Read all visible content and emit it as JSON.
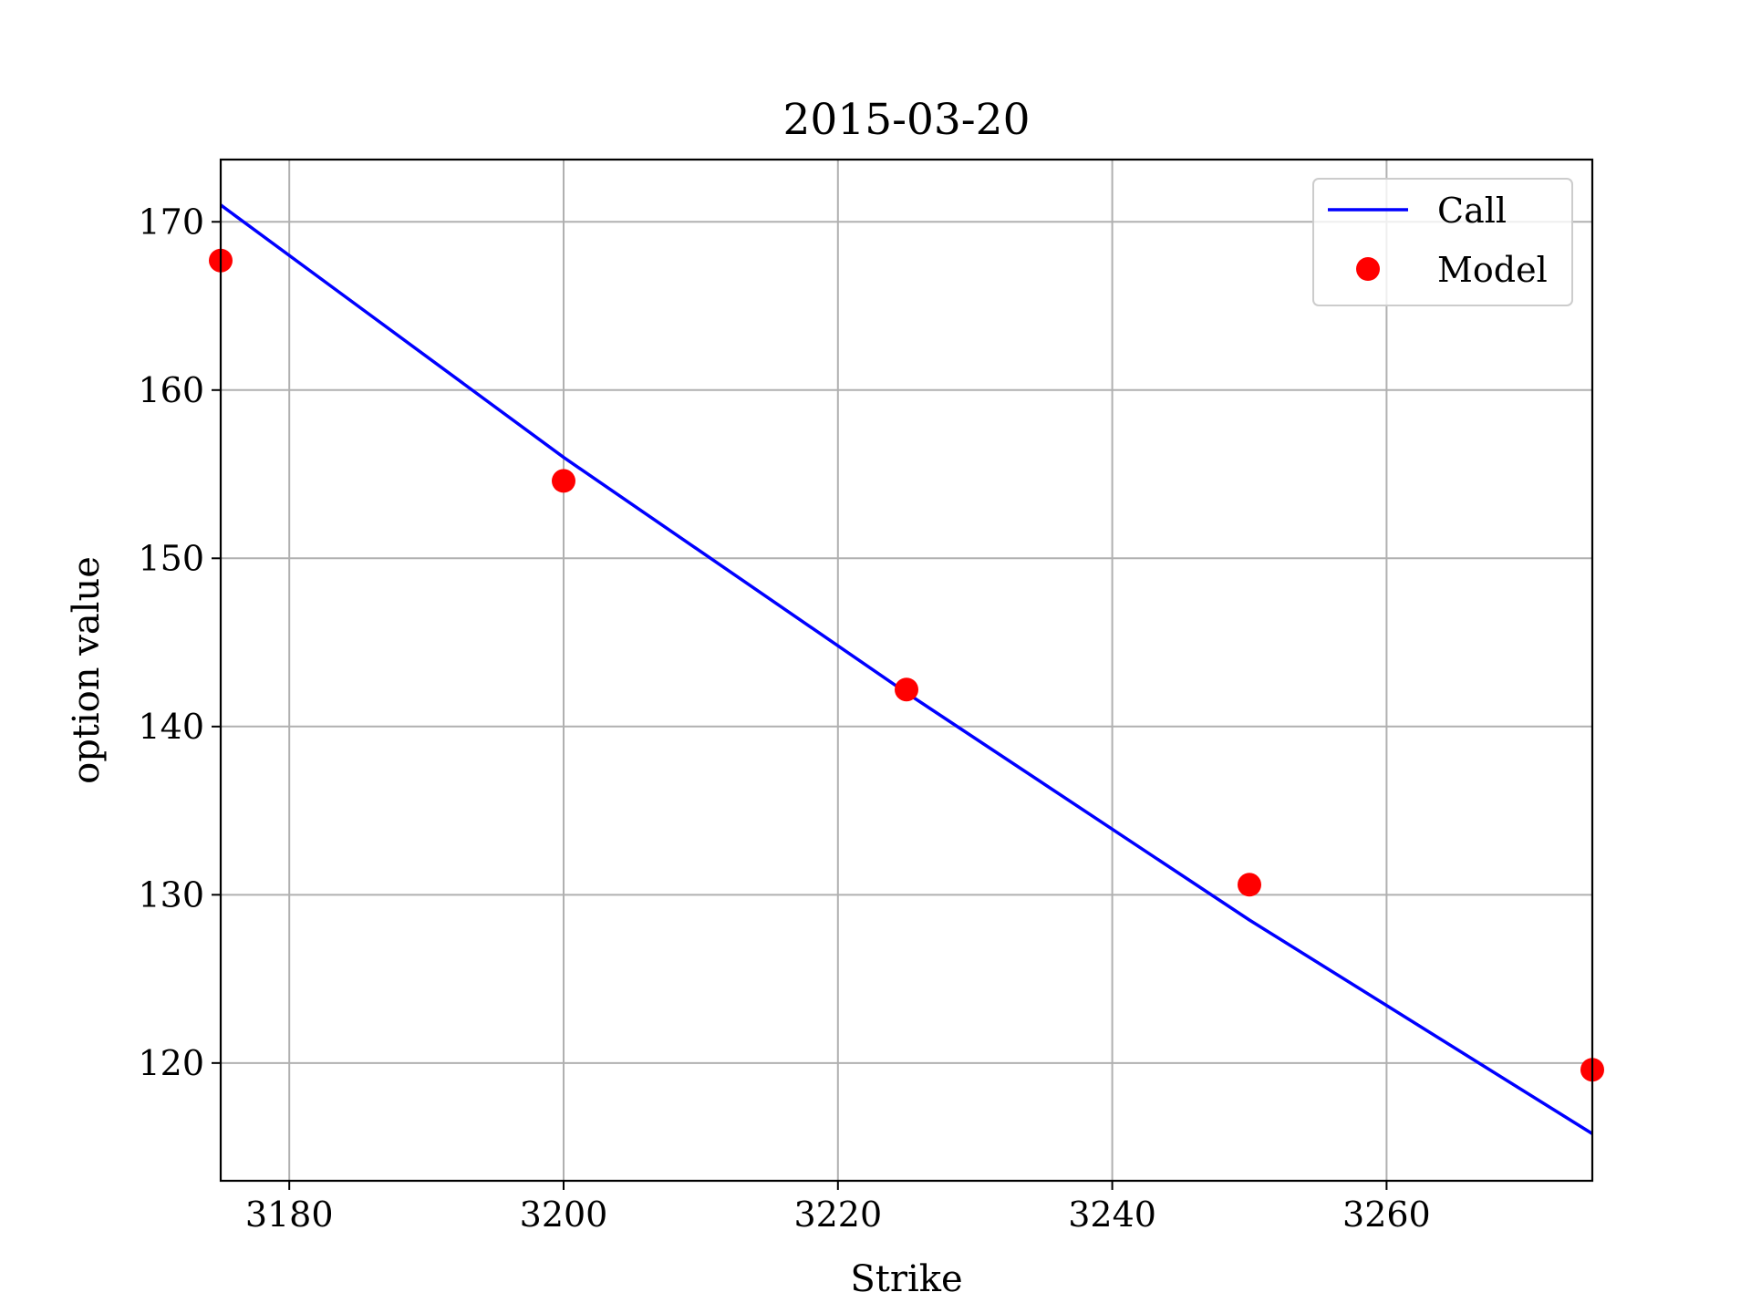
{
  "chart_data": {
    "type": "line",
    "title": "2015-03-20",
    "xlabel": "Strike",
    "ylabel": "option value",
    "xlim": [
      3175,
      3275
    ],
    "ylim": [
      113,
      173.7
    ],
    "x_ticks": [
      3180,
      3200,
      3220,
      3240,
      3260
    ],
    "y_ticks": [
      120,
      130,
      140,
      150,
      160,
      170
    ],
    "grid": true,
    "legend_position": "top-right",
    "series": [
      {
        "name": "Call",
        "kind": "line",
        "color": "#0000ff",
        "x": [
          3175,
          3200,
          3225,
          3250,
          3275
        ],
        "y": [
          171.0,
          156.0,
          142.0,
          128.5,
          115.8
        ]
      },
      {
        "name": "Model",
        "kind": "scatter",
        "color": "#ff0000",
        "x": [
          3175,
          3200,
          3225,
          3250,
          3275
        ],
        "y": [
          167.7,
          154.6,
          142.2,
          130.6,
          119.6
        ]
      }
    ]
  }
}
